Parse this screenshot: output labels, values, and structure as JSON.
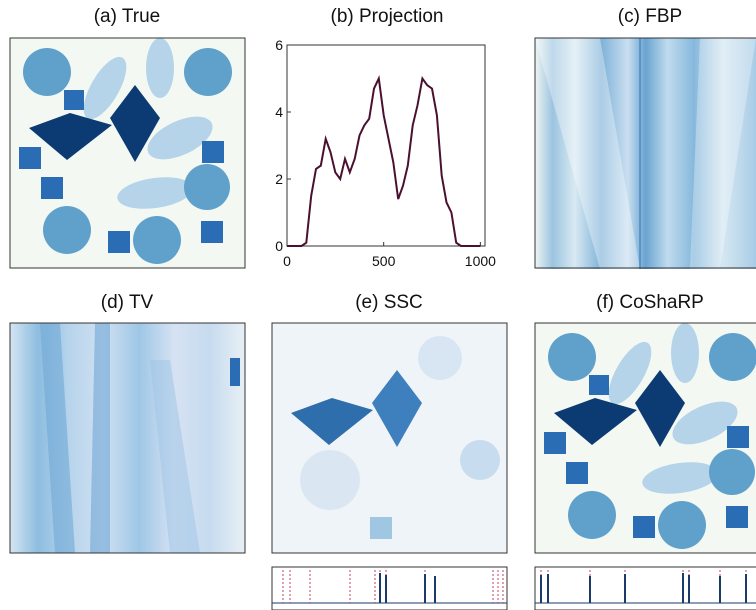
{
  "panels": [
    {
      "title": "(a) True"
    },
    {
      "title": "(c) FBP"
    },
    {
      "title": "(d) TV"
    },
    {
      "title": "(e) SSC"
    },
    {
      "title": "(f) CoShaRP"
    }
  ],
  "chart_data": {
    "type": "line",
    "title": "(b) Projection",
    "color": "#4a1030",
    "x": [
      0,
      25,
      50,
      75,
      100,
      125,
      150,
      175,
      200,
      225,
      250,
      275,
      300,
      325,
      350,
      375,
      400,
      425,
      450,
      475,
      500,
      525,
      550,
      575,
      600,
      625,
      650,
      675,
      700,
      725,
      750,
      775,
      800,
      825,
      850,
      875,
      900,
      925,
      950,
      975,
      1000
    ],
    "values": [
      0,
      0,
      0,
      0,
      0.1,
      1.5,
      2.3,
      2.4,
      3.2,
      2.8,
      2.2,
      2.0,
      2.6,
      2.2,
      2.6,
      3.3,
      3.6,
      3.8,
      4.7,
      5.0,
      3.9,
      3.2,
      2.5,
      1.4,
      1.8,
      2.4,
      3.6,
      4.2,
      5.0,
      4.8,
      4.7,
      3.9,
      2.1,
      1.3,
      1.0,
      0.1,
      0,
      0,
      0,
      0,
      0
    ],
    "xlim": [
      0,
      1024
    ],
    "ylim": [
      0,
      6
    ],
    "xticks": [
      0,
      500,
      1000
    ],
    "yticks": [
      0,
      2,
      4,
      6
    ]
  }
}
